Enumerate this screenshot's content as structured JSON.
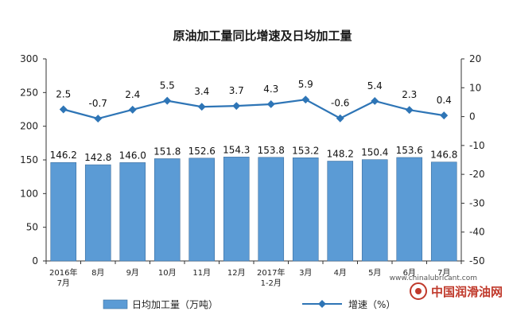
{
  "chart_data": {
    "type": "bar+line",
    "title": "原油加工量同比增速及日均加工量",
    "categories": [
      [
        "2016年",
        "7月"
      ],
      [
        "8月"
      ],
      [
        "9月"
      ],
      [
        "10月"
      ],
      [
        "11月"
      ],
      [
        "12月"
      ],
      [
        "2017年",
        "1-2月"
      ],
      [
        "3月"
      ],
      [
        "4月"
      ],
      [
        "5月"
      ],
      [
        "6月"
      ],
      [
        "7月"
      ]
    ],
    "bar_series": {
      "name": "日均加工量（万吨）",
      "axis": "left",
      "color": "#5b9bd5",
      "values": [
        146.2,
        142.8,
        146.0,
        151.8,
        152.6,
        154.3,
        153.8,
        153.2,
        148.2,
        150.4,
        153.6,
        146.8
      ],
      "value_labels": [
        "146.2",
        "142.8",
        "146.0",
        "151.8",
        "152.6",
        "154.3",
        "153.8",
        "153.2",
        "148.2",
        "150.4",
        "153.6",
        "146.8"
      ]
    },
    "line_series": {
      "name": "增速（%）",
      "axis": "right",
      "color": "#2e75b6",
      "values": [
        2.5,
        -0.7,
        2.4,
        5.5,
        3.4,
        3.7,
        4.3,
        5.9,
        -0.6,
        5.4,
        2.3,
        0.4
      ],
      "value_labels": [
        "2.5",
        "-0.7",
        "2.4",
        "5.5",
        "3.4",
        "3.7",
        "4.3",
        "5.9",
        "-0.6",
        "5.4",
        "2.3",
        "0.4"
      ]
    },
    "y_left": {
      "min": 0,
      "max": 300,
      "step": 50
    },
    "y_right": {
      "min": -50,
      "max": 20,
      "step": 10
    },
    "grid": false,
    "legend_position": "bottom"
  },
  "watermark": {
    "url": "www.chinalubricant.com",
    "name": "中国润滑油网",
    "color": "#c0392b"
  }
}
